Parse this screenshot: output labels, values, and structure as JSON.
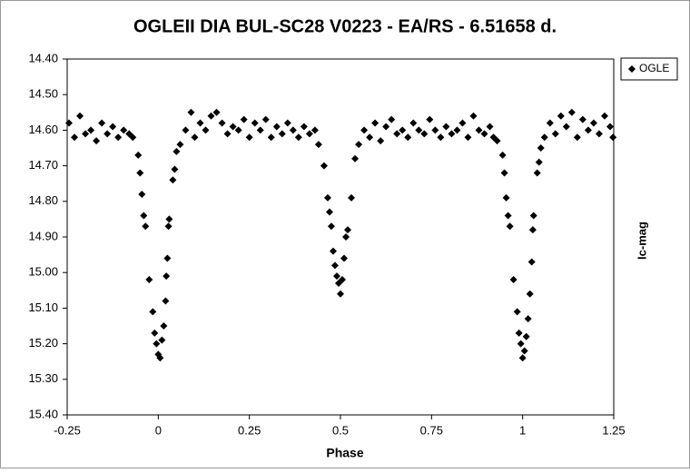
{
  "chart_data": {
    "type": "scatter",
    "title": "OGLEII DIA BUL-SC28 V0223 - EA/RS - 6.51658 d.",
    "x_label": "Phase",
    "y_label": "Ic-mag",
    "x": [
      -0.245,
      -0.23,
      -0.215,
      -0.2,
      -0.185,
      -0.17,
      -0.155,
      -0.14,
      -0.125,
      -0.11,
      -0.095,
      -0.08,
      -0.07,
      -0.055,
      -0.05,
      -0.045,
      -0.04,
      -0.035,
      -0.025,
      -0.015,
      -0.01,
      -0.005,
      0,
      0.005,
      0.01,
      0.015,
      0.02,
      0.022,
      0.025,
      0.028,
      0.03,
      0.04,
      0.045,
      0.05,
      0.06,
      0.075,
      0.09,
      0.1,
      0.115,
      0.13,
      0.145,
      0.16,
      0.175,
      0.19,
      0.205,
      0.22,
      0.235,
      0.25,
      0.265,
      0.28,
      0.295,
      0.31,
      0.325,
      0.34,
      0.355,
      0.37,
      0.385,
      0.4,
      0.415,
      0.43,
      0.44,
      0.455,
      0.465,
      0.47,
      0.475,
      0.48,
      0.485,
      0.49,
      0.495,
      0.5,
      0.505,
      0.51,
      0.515,
      0.52,
      0.53,
      0.54,
      0.55,
      0.565,
      0.58,
      0.595,
      0.61,
      0.625,
      0.64,
      0.655,
      0.67,
      0.685,
      0.7,
      0.715,
      0.73,
      0.745,
      0.76,
      0.775,
      0.79,
      0.805,
      0.82,
      0.835,
      0.85,
      0.865,
      0.88,
      0.895,
      0.91,
      0.92,
      0.93,
      0.945,
      0.95,
      0.955,
      0.96,
      0.965,
      0.975,
      0.985,
      0.99,
      0.995,
      1,
      1.005,
      1.01,
      1.015,
      1.02,
      1.025,
      1.028,
      1.03,
      1.04,
      1.045,
      1.05,
      1.06,
      1.075,
      1.09,
      1.105,
      1.12,
      1.135,
      1.15,
      1.165,
      1.18,
      1.195,
      1.21,
      1.225,
      1.24,
      1.248
    ],
    "series": [
      {
        "name": "OGLE",
        "color": "#000000",
        "values": [
          14.58,
          14.62,
          14.56,
          14.61,
          14.6,
          14.63,
          14.58,
          14.61,
          14.59,
          14.62,
          14.6,
          14.61,
          14.62,
          14.67,
          14.72,
          14.78,
          14.84,
          14.87,
          15.02,
          15.11,
          15.17,
          15.2,
          15.23,
          15.24,
          15.19,
          15.15,
          15.08,
          15.01,
          14.96,
          14.87,
          14.85,
          14.74,
          14.71,
          14.66,
          14.64,
          14.6,
          14.55,
          14.62,
          14.58,
          14.6,
          14.56,
          14.55,
          14.58,
          14.61,
          14.59,
          14.6,
          14.57,
          14.62,
          14.58,
          14.6,
          14.57,
          14.62,
          14.59,
          14.61,
          14.58,
          14.6,
          14.62,
          14.59,
          14.61,
          14.6,
          14.64,
          14.7,
          14.79,
          14.83,
          14.87,
          14.94,
          14.98,
          15.01,
          15.03,
          15.06,
          15.02,
          14.96,
          14.9,
          14.88,
          14.79,
          14.68,
          14.64,
          14.6,
          14.62,
          14.58,
          14.63,
          14.59,
          14.57,
          14.61,
          14.6,
          14.62,
          14.58,
          14.6,
          14.61,
          14.57,
          14.6,
          14.62,
          14.59,
          14.61,
          14.6,
          14.58,
          14.62,
          14.56,
          14.6,
          14.61,
          14.59,
          14.62,
          14.63,
          14.67,
          14.72,
          14.79,
          14.84,
          14.87,
          15.02,
          15.11,
          15.17,
          15.2,
          15.24,
          15.22,
          15.18,
          15.13,
          15.06,
          14.97,
          14.88,
          14.84,
          14.72,
          14.69,
          14.65,
          14.62,
          14.58,
          14.61,
          14.56,
          14.59,
          14.55,
          14.62,
          14.57,
          14.6,
          14.58,
          14.61,
          14.56,
          14.59,
          14.62
        ]
      }
    ],
    "xlim": [
      -0.25,
      1.25
    ],
    "xticks": [
      -0.25,
      0,
      0.25,
      0.5,
      0.75,
      1,
      1.25
    ],
    "ylim": [
      14.4,
      15.4
    ],
    "y_reversed": true,
    "yticks": [
      {
        "value": 14.4,
        "label": "14.40"
      },
      {
        "value": 14.5,
        "label": "14.50"
      },
      {
        "value": 14.6,
        "label": "14.60"
      },
      {
        "value": 14.7,
        "label": "14.70"
      },
      {
        "value": 14.8,
        "label": "14.80"
      },
      {
        "value": 14.9,
        "label": "14.90"
      },
      {
        "value": 15.0,
        "label": "15.00"
      },
      {
        "value": 15.1,
        "label": "15.10"
      },
      {
        "value": 15.2,
        "label": "15.20"
      },
      {
        "value": 15.3,
        "label": "15.30"
      },
      {
        "value": 15.4,
        "label": "15.40"
      }
    ],
    "grid": false,
    "legend": "right"
  }
}
